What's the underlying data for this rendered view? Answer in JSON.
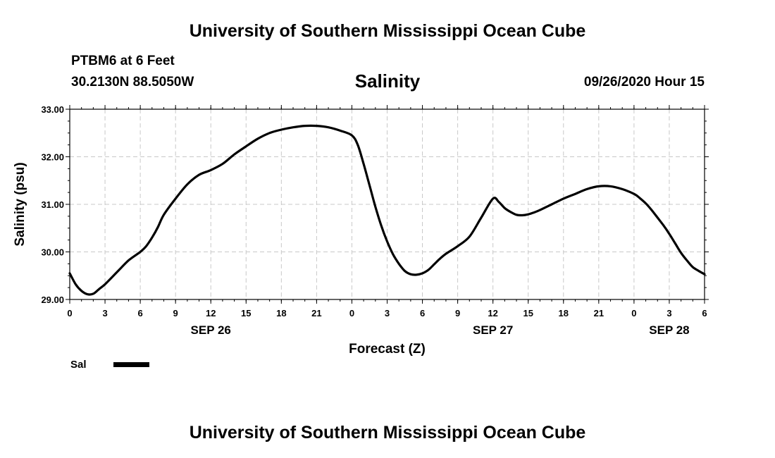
{
  "header": {
    "title": "University of Southern Mississippi Ocean Cube",
    "station": "PTBM6 at 6 Feet",
    "coordinates": "30.2130N 88.5050W",
    "variable": "Salinity",
    "datetime": "09/26/2020 Hour 15"
  },
  "footer": {
    "title": "University of Southern Mississippi Ocean Cube"
  },
  "chart_data": {
    "type": "line",
    "title": "Salinity",
    "xlabel": "Forecast (Z)",
    "ylabel": "Salinity (psu)",
    "ylim": [
      29.0,
      33.0
    ],
    "yticks": [
      "29.00",
      "30.00",
      "31.00",
      "32.00",
      "33.00"
    ],
    "xlim_hours": [
      0,
      54
    ],
    "xticks": [
      "0",
      "3",
      "6",
      "9",
      "12",
      "15",
      "18",
      "21",
      "0",
      "3",
      "6",
      "9",
      "12",
      "15",
      "18",
      "21",
      "0",
      "3",
      "6"
    ],
    "date_labels": [
      {
        "label": "SEP 26",
        "hour": 12
      },
      {
        "label": "SEP 27",
        "hour": 36
      },
      {
        "label": "SEP 28",
        "hour": 51
      }
    ],
    "grid": true,
    "legend_position": "bottom-left",
    "series": [
      {
        "name": "Sal",
        "color": "#000000",
        "x": [
          0,
          0.5,
          1,
          1.5,
          2,
          2.5,
          3,
          4,
          5,
          6,
          6.5,
          7,
          7.5,
          8,
          9,
          10,
          11,
          12,
          13,
          14,
          15,
          16,
          17,
          18,
          19,
          20,
          21,
          22,
          23,
          24,
          24.5,
          25,
          25.5,
          26,
          26.5,
          27,
          27.5,
          28,
          28.5,
          29,
          29.5,
          30,
          30.5,
          31,
          31.5,
          32,
          33,
          34,
          35,
          36,
          36.5,
          37,
          37.5,
          38,
          38.5,
          39,
          39.5,
          40,
          41,
          42,
          43,
          44,
          45,
          46,
          47,
          48,
          48.5,
          49,
          49.5,
          50,
          50.5,
          51,
          51.5,
          52,
          52.5,
          53,
          53.5,
          54
        ],
        "y": [
          29.55,
          29.32,
          29.18,
          29.11,
          29.12,
          29.22,
          29.32,
          29.57,
          29.82,
          30.0,
          30.12,
          30.3,
          30.52,
          30.78,
          31.12,
          31.42,
          31.62,
          31.72,
          31.85,
          32.05,
          32.22,
          32.38,
          32.5,
          32.57,
          32.62,
          32.65,
          32.65,
          32.62,
          32.55,
          32.45,
          32.25,
          31.85,
          31.4,
          30.95,
          30.55,
          30.22,
          29.95,
          29.75,
          29.6,
          29.53,
          29.52,
          29.55,
          29.62,
          29.74,
          29.86,
          29.96,
          30.12,
          30.32,
          30.72,
          31.12,
          31.05,
          30.92,
          30.84,
          30.78,
          30.77,
          30.79,
          30.83,
          30.88,
          31.0,
          31.12,
          31.22,
          31.32,
          31.38,
          31.38,
          31.32,
          31.22,
          31.13,
          31.02,
          30.88,
          30.72,
          30.56,
          30.38,
          30.18,
          29.98,
          29.82,
          29.68,
          29.6,
          29.53
        ]
      }
    ]
  }
}
